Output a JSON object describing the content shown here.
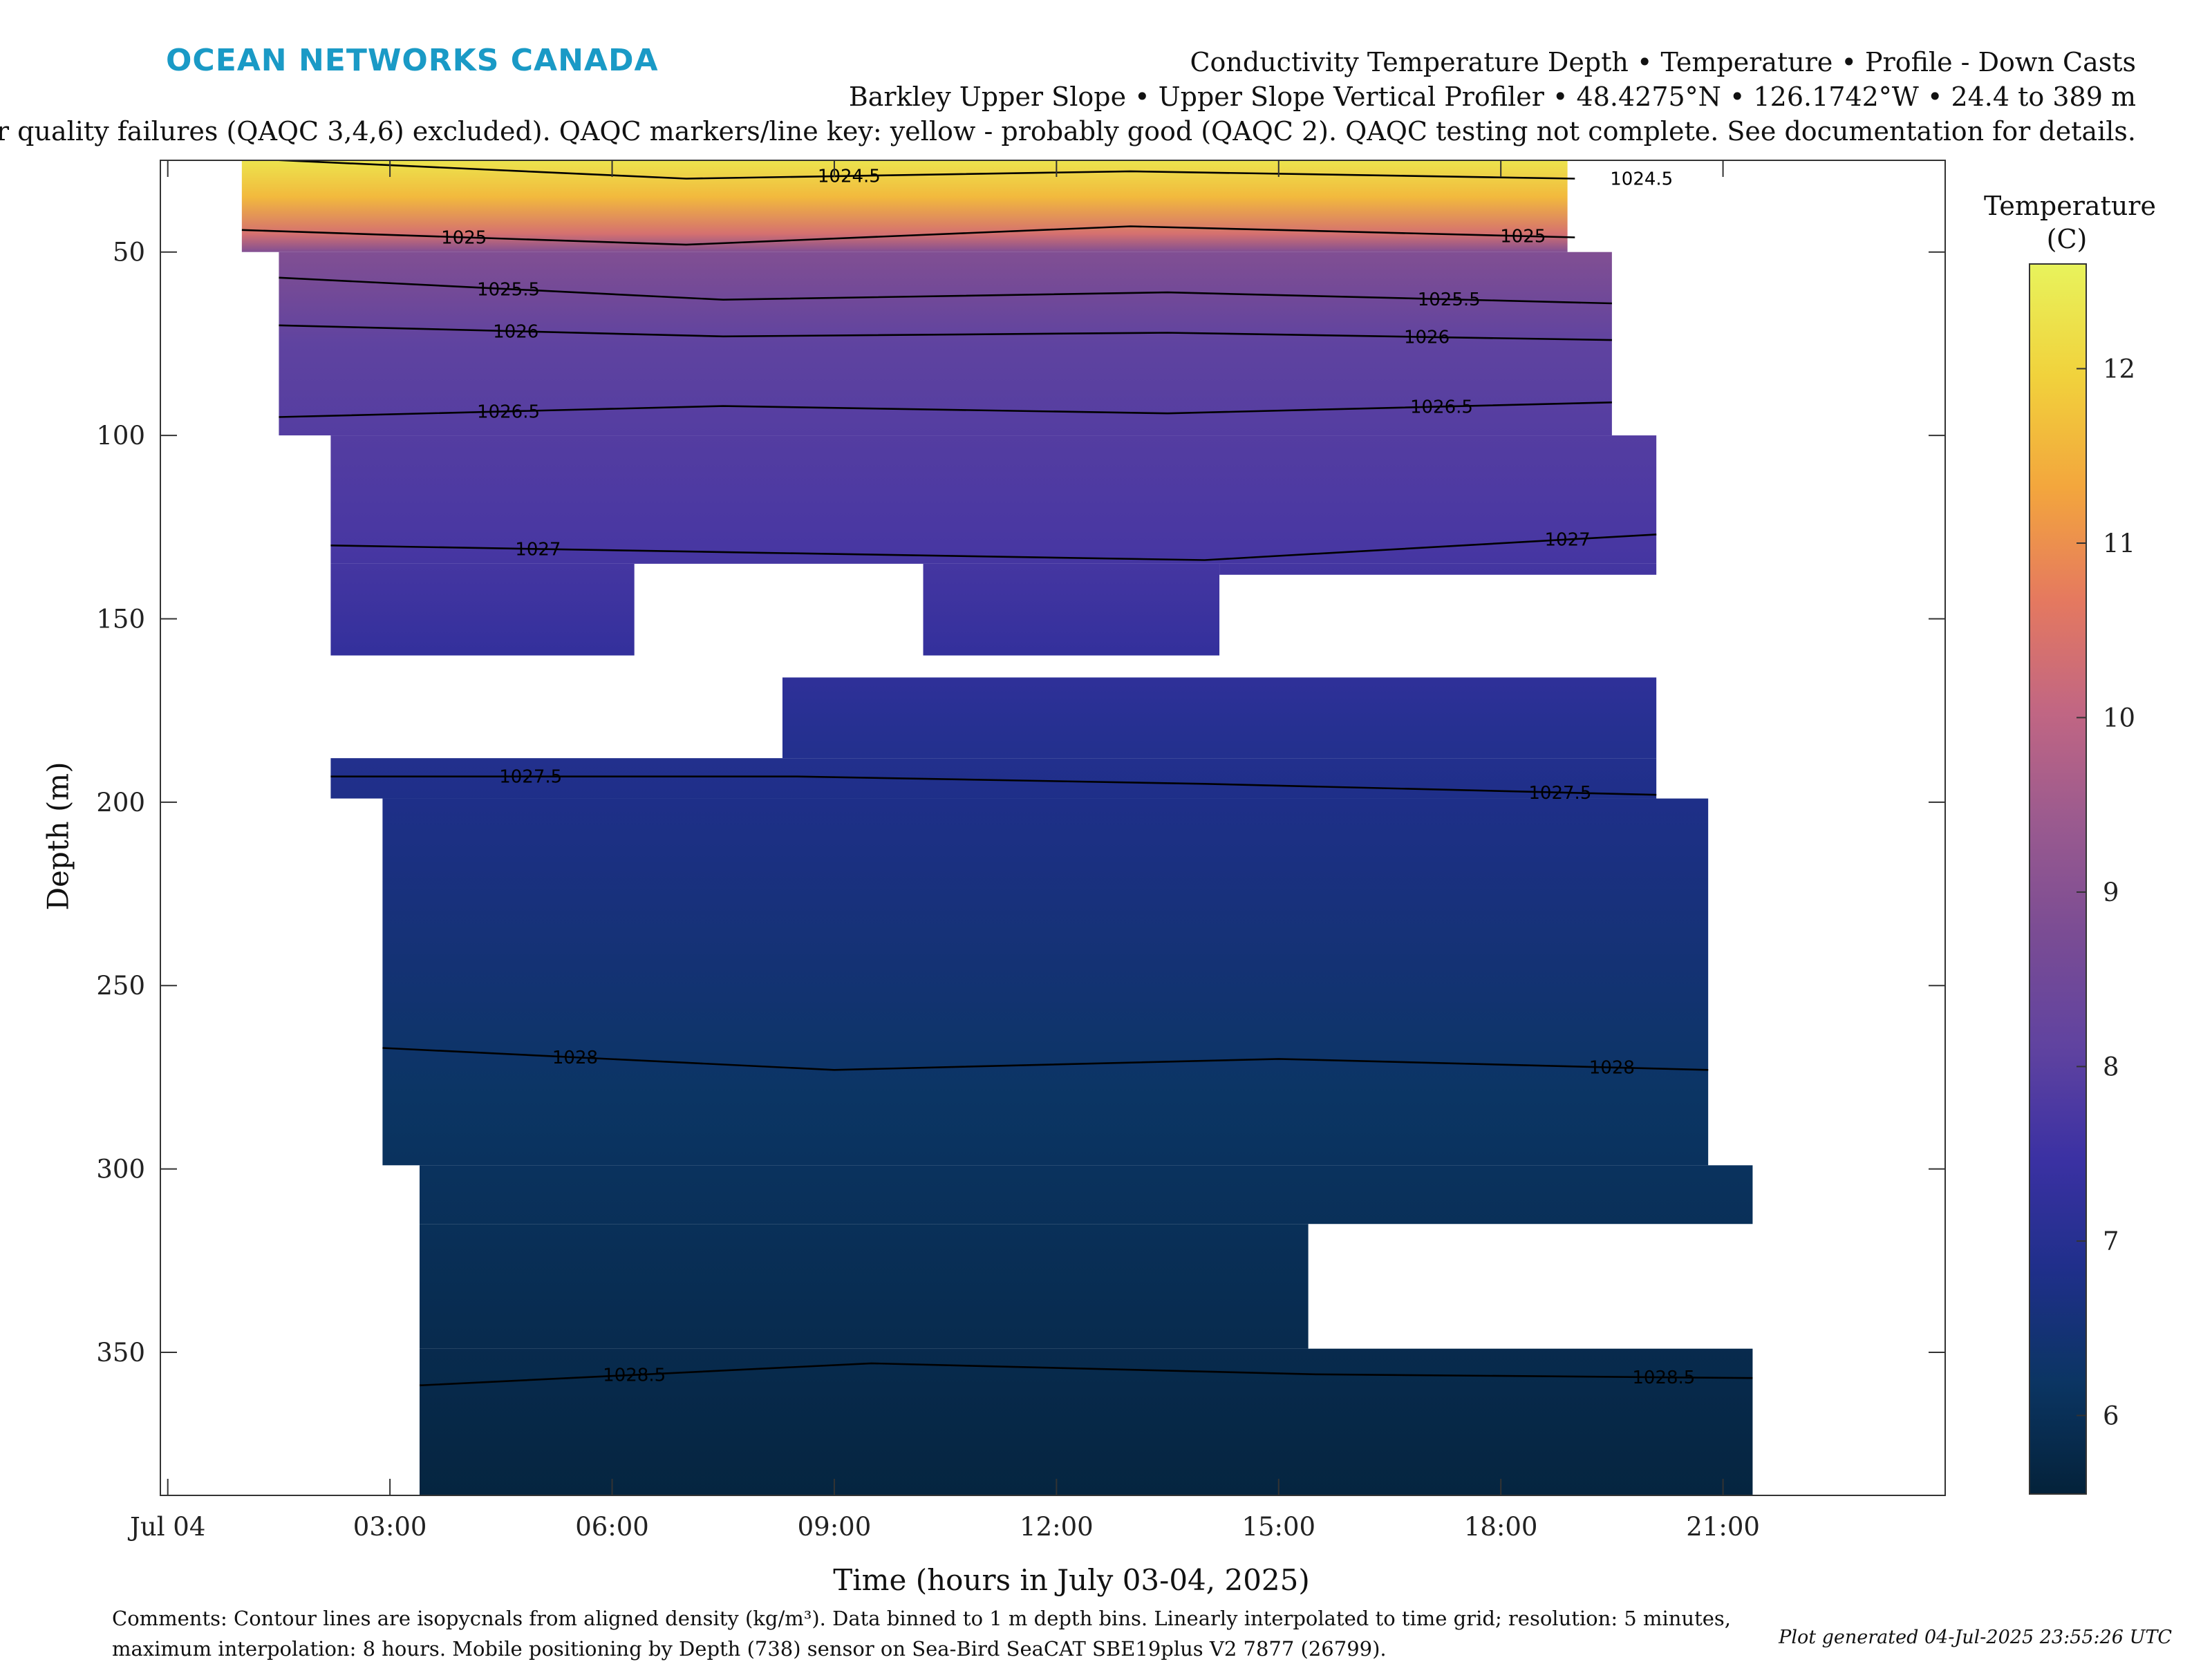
{
  "header": {
    "logo_text": "OCEAN NETWORKS CANADA",
    "title_line1": "Conductivity Temperature Depth • Temperature • Profile - Down Casts",
    "title_line2": "Barkley Upper Slope • Upper Slope Vertical Profiler • 48.4275°N • 126.1742°W • 24.4 to 389 m",
    "title_line3": "or quality failures (QAQC 3,4,6) excluded). QAQC markers/line key: yellow - probably good (QAQC 2). QAQC testing not complete. See documentation for details."
  },
  "chart_data": {
    "type": "heatmap",
    "xlabel": "Time (hours in July 03-04, 2025)",
    "ylabel": "Depth (m)",
    "x_ticks": [
      "Jul 04",
      "03:00",
      "06:00",
      "09:00",
      "12:00",
      "15:00",
      "18:00",
      "21:00"
    ],
    "x_tick_hours": [
      0,
      3,
      6,
      9,
      12,
      15,
      18,
      21
    ],
    "x_range_hours": [
      -0.1,
      24.0
    ],
    "y_ticks": [
      50,
      100,
      150,
      200,
      250,
      300,
      350
    ],
    "y_range": [
      25,
      389
    ],
    "y_reversed": true,
    "colorbar": {
      "label_line1": "Temperature",
      "label_line2": "(C)",
      "ticks": [
        6,
        7,
        8,
        9,
        10,
        11,
        12
      ],
      "range": [
        5.55,
        12.6
      ],
      "colormap": [
        "#04223a",
        "#0b3563",
        "#1f2f8a",
        "#3b31a3",
        "#6043a0",
        "#7a4c94",
        "#9a5a8f",
        "#c16683",
        "#e5795f",
        "#f3a63d",
        "#f1d23c",
        "#e8f35c"
      ]
    },
    "temperature_profile": [
      {
        "depth": 25,
        "temp": 12.3
      },
      {
        "depth": 35,
        "temp": 11.6
      },
      {
        "depth": 45,
        "temp": 10.4
      },
      {
        "depth": 50,
        "temp": 8.9
      },
      {
        "depth": 60,
        "temp": 8.6
      },
      {
        "depth": 75,
        "temp": 8.1
      },
      {
        "depth": 100,
        "temp": 7.9
      },
      {
        "depth": 130,
        "temp": 7.7
      },
      {
        "depth": 160,
        "temp": 7.3
      },
      {
        "depth": 180,
        "temp": 7.0
      },
      {
        "depth": 200,
        "temp": 6.8
      },
      {
        "depth": 240,
        "temp": 6.5
      },
      {
        "depth": 280,
        "temp": 6.2
      },
      {
        "depth": 320,
        "temp": 6.0
      },
      {
        "depth": 360,
        "temp": 5.8
      },
      {
        "depth": 389,
        "temp": 5.65
      }
    ],
    "data_coverage": [
      {
        "t0": 1.0,
        "t1": 18.9,
        "d0": 25,
        "d1": 50
      },
      {
        "t0": 1.5,
        "t1": 19.5,
        "d0": 50,
        "d1": 100
      },
      {
        "t0": 2.2,
        "t1": 20.1,
        "d0": 100,
        "d1": 135
      },
      {
        "t0": 2.2,
        "t1": 6.3,
        "d0": 135,
        "d1": 160
      },
      {
        "t0": 10.2,
        "t1": 14.2,
        "d0": 135,
        "d1": 160
      },
      {
        "t0": 14.2,
        "t1": 20.1,
        "d0": 135,
        "d1": 138
      },
      {
        "t0": 8.3,
        "t1": 20.1,
        "d0": 166,
        "d1": 188
      },
      {
        "t0": 2.2,
        "t1": 20.1,
        "d0": 188,
        "d1": 199
      },
      {
        "t0": 2.9,
        "t1": 20.8,
        "d0": 199,
        "d1": 299
      },
      {
        "t0": 3.4,
        "t1": 21.4,
        "d0": 299,
        "d1": 315
      },
      {
        "t0": 3.4,
        "t1": 15.4,
        "d0": 315,
        "d1": 349
      },
      {
        "t0": 3.4,
        "t1": 21.4,
        "d0": 349,
        "d1": 389
      }
    ],
    "isopycnals": [
      {
        "label": "1024.5",
        "points": [
          [
            1.0,
            24.5
          ],
          [
            7.0,
            30
          ],
          [
            13.0,
            28
          ],
          [
            19.0,
            30
          ]
        ],
        "label_at": [
          9.2,
          19.9
        ]
      },
      {
        "label": "1025",
        "points": [
          [
            1.0,
            44
          ],
          [
            7.0,
            48
          ],
          [
            13.0,
            43
          ],
          [
            19.0,
            46
          ]
        ],
        "label_at": [
          4.0,
          18.3
        ]
      },
      {
        "label": "1025.5",
        "points": [
          [
            1.5,
            57
          ],
          [
            7.5,
            63
          ],
          [
            13.5,
            61
          ],
          [
            19.5,
            64
          ]
        ],
        "label_at": [
          4.6,
          17.3
        ]
      },
      {
        "label": "1026",
        "points": [
          [
            1.5,
            70
          ],
          [
            7.5,
            73
          ],
          [
            13.5,
            72
          ],
          [
            19.5,
            74
          ]
        ],
        "label_at": [
          4.7,
          17.0
        ]
      },
      {
        "label": "1026.5",
        "points": [
          [
            1.5,
            95
          ],
          [
            7.5,
            92
          ],
          [
            13.5,
            94
          ],
          [
            19.5,
            91
          ]
        ],
        "label_at": [
          4.6,
          17.2
        ]
      },
      {
        "label": "1027",
        "points": [
          [
            2.2,
            130
          ],
          [
            8.0,
            132
          ],
          [
            14.0,
            134
          ],
          [
            20.1,
            127
          ]
        ],
        "label_at": [
          5.0,
          18.9
        ]
      },
      {
        "label": "1027.5",
        "points": [
          [
            2.2,
            193
          ],
          [
            8.5,
            193
          ],
          [
            14.0,
            195
          ],
          [
            20.1,
            198
          ]
        ],
        "label_at": [
          4.9,
          18.8
        ]
      },
      {
        "label": "1028",
        "points": [
          [
            2.9,
            267
          ],
          [
            9.0,
            273
          ],
          [
            15.0,
            270
          ],
          [
            20.8,
            273
          ]
        ],
        "label_at": [
          5.5,
          19.5
        ]
      },
      {
        "label": "1028.5",
        "points": [
          [
            3.4,
            359
          ],
          [
            9.5,
            353
          ],
          [
            15.5,
            356
          ],
          [
            21.4,
            357
          ]
        ],
        "label_at": [
          6.3,
          20.2
        ]
      }
    ]
  },
  "footer": {
    "comments": "Comments: Contour lines are isopycnals from aligned density (kg/m³). Data binned to 1 m depth bins. Linearly interpolated to time grid; resolution: 5 minutes, maximum interpolation: 8 hours. Mobile positioning by Depth (738) sensor on Sea-Bird SeaCAT SBE19plus V2 7877 (26799).",
    "generated": "Plot generated 04-Jul-2025 23:55:26 UTC"
  }
}
